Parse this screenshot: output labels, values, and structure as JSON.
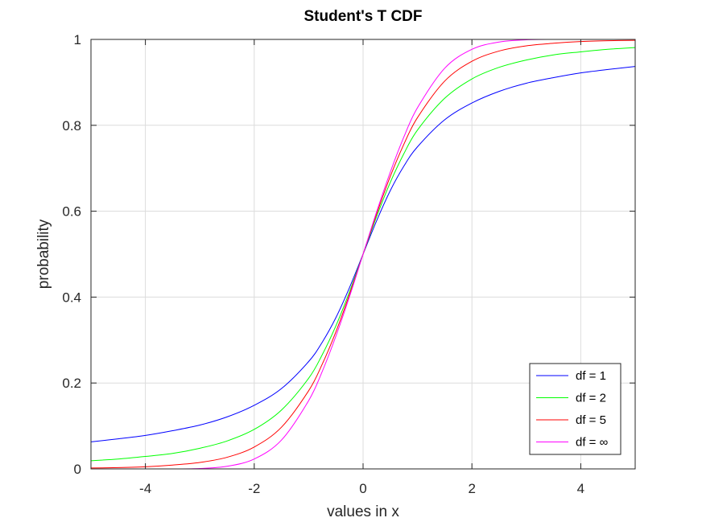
{
  "chart_data": {
    "type": "line",
    "title": "Student's T CDF",
    "xlabel": "values in x",
    "ylabel": "probability",
    "xlim": [
      -5,
      5
    ],
    "ylim": [
      0,
      1
    ],
    "xticks": [
      -4,
      -2,
      0,
      2,
      4
    ],
    "yticks": [
      0,
      0.2,
      0.4,
      0.6,
      0.8,
      1
    ],
    "xtick_labels": [
      "-4",
      "-2",
      "0",
      "2",
      "4"
    ],
    "ytick_labels": [
      "0",
      "0.2",
      "0.4",
      "0.6",
      "0.8",
      "1"
    ],
    "grid": true,
    "legend_position": "bottom-right",
    "x": [
      -5,
      -4.5,
      -4,
      -3.5,
      -3,
      -2.5,
      -2,
      -1.5,
      -1,
      -0.75,
      -0.5,
      -0.25,
      0,
      0.25,
      0.5,
      0.75,
      1,
      1.5,
      2,
      2.5,
      3,
      3.5,
      4,
      4.5,
      5
    ],
    "series": [
      {
        "name": "df = 1",
        "color": "#0000ff",
        "values": [
          0.063,
          0.07,
          0.078,
          0.089,
          0.102,
          0.121,
          0.148,
          0.187,
          0.25,
          0.295,
          0.352,
          0.422,
          0.5,
          0.578,
          0.648,
          0.705,
          0.75,
          0.813,
          0.852,
          0.879,
          0.898,
          0.911,
          0.922,
          0.93,
          0.937
        ]
      },
      {
        "name": "df = 2",
        "color": "#00ff00",
        "values": [
          0.019,
          0.023,
          0.029,
          0.036,
          0.048,
          0.065,
          0.092,
          0.137,
          0.211,
          0.266,
          0.333,
          0.412,
          0.5,
          0.588,
          0.667,
          0.734,
          0.789,
          0.863,
          0.908,
          0.935,
          0.952,
          0.964,
          0.971,
          0.977,
          0.981
        ]
      },
      {
        "name": "df = 5",
        "color": "#ff0000",
        "values": [
          0.002,
          0.003,
          0.005,
          0.009,
          0.015,
          0.027,
          0.051,
          0.097,
          0.182,
          0.244,
          0.319,
          0.406,
          0.5,
          0.594,
          0.681,
          0.756,
          0.818,
          0.903,
          0.949,
          0.973,
          0.985,
          0.991,
          0.995,
          0.997,
          0.998
        ]
      },
      {
        "name": "df = ∞",
        "color": "#ff00ff",
        "values": [
          0.0,
          0.0,
          0.0,
          0.0,
          0.001,
          0.006,
          0.023,
          0.067,
          0.159,
          0.227,
          0.309,
          0.401,
          0.5,
          0.599,
          0.691,
          0.773,
          0.841,
          0.933,
          0.977,
          0.994,
          0.999,
          1.0,
          1.0,
          1.0,
          1.0
        ]
      }
    ]
  }
}
